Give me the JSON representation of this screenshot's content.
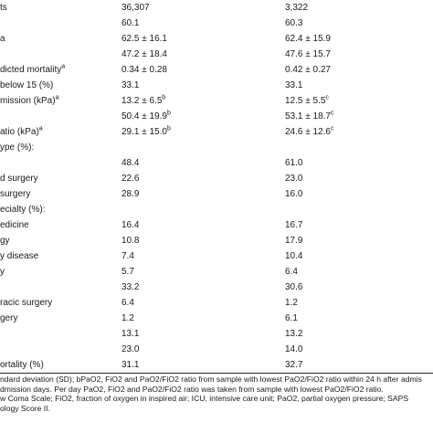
{
  "rows": [
    {
      "label": "ts",
      "a": "36,307",
      "b": "3,322"
    },
    {
      "label": "",
      "a": "60.1",
      "b": "60.3"
    },
    {
      "label": "a",
      "a": "62.5 ± 16.1",
      "b": "62.4 ± 15.9"
    },
    {
      "label": "",
      "a": "47.2 ± 18.4",
      "b": "47.6 ± 15.7"
    },
    {
      "label": "dicted mortality",
      "label_sup": "a",
      "a": "0.34 ± 0.28",
      "b": "0.42 ± 0.27"
    },
    {
      "label": "below 15 (%)",
      "a": "33.1",
      "b": "33.1"
    },
    {
      "label": "mission (kPa)",
      "label_sup": "a",
      "a": "13.2 ± 6.5",
      "a_sup": "b",
      "b": "12.5 ± 5.5",
      "b_sup": "c"
    },
    {
      "label": "",
      "a": "50.4 ± 19.9",
      "a_sup": "b",
      "b": "53.1 ± 18.7",
      "b_sup": "c"
    },
    {
      "label": "atio (kPa)",
      "label_sup": "a",
      "a": "29.1 ± 15.0",
      "a_sup": "b",
      "b": "24.6 ± 12.6",
      "b_sup": "c"
    },
    {
      "label": "ype (%):",
      "a": "",
      "b": ""
    },
    {
      "label": "",
      "a": "48.4",
      "b": "61.0"
    },
    {
      "label": "d surgery",
      "a": "22.6",
      "b": "23.0"
    },
    {
      "label": "surgery",
      "a": "28.9",
      "b": "16.0"
    },
    {
      "label": "ecialty (%):",
      "a": "",
      "b": ""
    },
    {
      "label": "edicine",
      "a": "16.4",
      "b": "16.7"
    },
    {
      "label": "gy",
      "a": "10.8",
      "b": "17.9"
    },
    {
      "label": "y disease",
      "a": "7.4",
      "b": "10.4"
    },
    {
      "label": "y",
      "a": "5.7",
      "b": "6.4"
    },
    {
      "label": "",
      "a": "33.2",
      "b": "30.6"
    },
    {
      "label": "racic surgery",
      "a": "6.4",
      "b": "1.2"
    },
    {
      "label": "gery",
      "a": "1.2",
      "b": "6.1"
    },
    {
      "label": "",
      "a": "13.1",
      "b": "13.2"
    },
    {
      "label": "",
      "a": "23.0",
      "b": "14.0"
    },
    {
      "label": "ortality (%)",
      "a": "31.1",
      "b": "32.7"
    }
  ],
  "footnotes": [
    "ndard deviation (SD); bPaO2, FiO2 and PaO2/FiO2 ratio from sample with lowest PaO2/FiO2 ratio within 24 h after admis",
    "dmission days. Per day PaO2, FiO2 and PaO2/FiO2 ratio was taken from sample with lowest PaO2/FiO2 ratio.",
    "w Coma Scale; FiO2, fraction of oxygen in inspired air; ICU, intensive care unit; PaO2, partial oxygen pressure; SAPS",
    "ology Score II."
  ]
}
